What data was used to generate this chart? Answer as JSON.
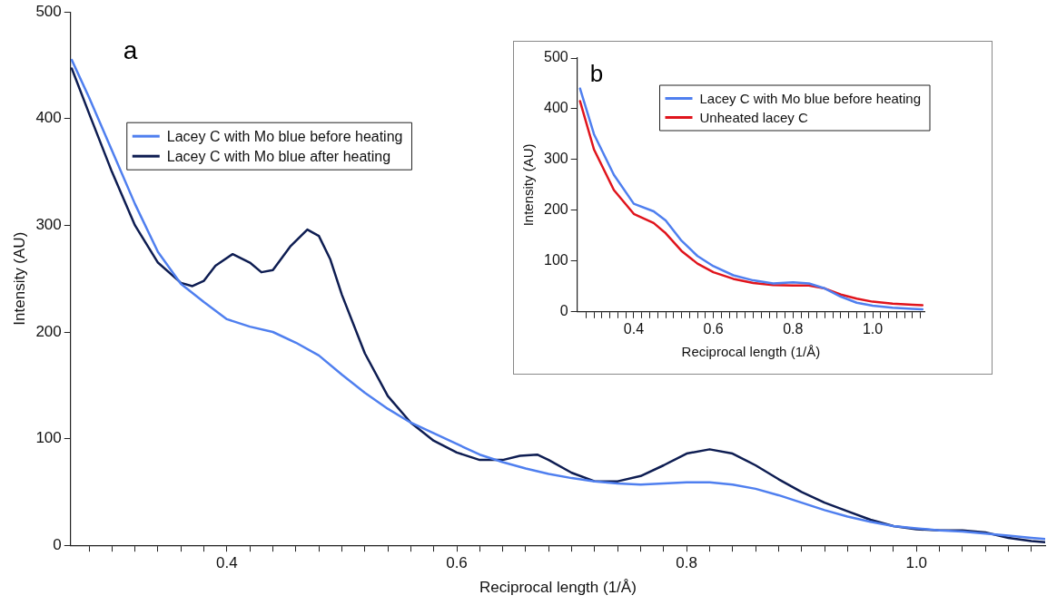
{
  "chart_data": [
    {
      "type": "line",
      "xlabel": "Reciprocal length (1/Å)",
      "ylabel": "Intensity (AU)",
      "annotations": [
        "a"
      ],
      "xlim": [
        0.264,
        1.112
      ],
      "ylim": [
        0,
        500
      ],
      "yticks": [
        0,
        100,
        200,
        300,
        400,
        500
      ],
      "xticks": [
        {
          "value": 0.28,
          "label": null
        },
        {
          "value": 0.3,
          "label": null
        },
        {
          "value": 0.32,
          "label": null
        },
        {
          "value": 0.34,
          "label": null
        },
        {
          "value": 0.36,
          "label": null
        },
        {
          "value": 0.38,
          "label": null
        },
        0.4,
        {
          "value": 0.42,
          "label": null
        },
        {
          "value": 0.44,
          "label": null
        },
        {
          "value": 0.46,
          "label": null
        },
        {
          "value": 0.48,
          "label": null
        },
        {
          "value": 0.5,
          "label": null
        },
        {
          "value": 0.52,
          "label": null
        },
        {
          "value": 0.54,
          "label": null
        },
        {
          "value": 0.56,
          "label": null
        },
        {
          "value": 0.58,
          "label": null
        },
        0.6,
        {
          "value": 0.62,
          "label": null
        },
        {
          "value": 0.64,
          "label": null
        },
        {
          "value": 0.66,
          "label": null
        },
        {
          "value": 0.68,
          "label": null
        },
        {
          "value": 0.7,
          "label": null
        },
        {
          "value": 0.72,
          "label": null
        },
        {
          "value": 0.74,
          "label": null
        },
        {
          "value": 0.76,
          "label": null
        },
        {
          "value": 0.78,
          "label": null
        },
        0.8,
        {
          "value": 0.82,
          "label": null
        },
        {
          "value": 0.84,
          "label": null
        },
        {
          "value": 0.86,
          "label": null
        },
        {
          "value": 0.88,
          "label": null
        },
        {
          "value": 0.9,
          "label": null
        },
        {
          "value": 0.92,
          "label": null
        },
        {
          "value": 0.94,
          "label": null
        },
        {
          "value": 0.96,
          "label": null
        },
        {
          "value": 0.98,
          "label": null
        },
        {
          "value": 1.0,
          "label": "1.0"
        },
        {
          "value": 1.02,
          "label": null
        },
        {
          "value": 1.04,
          "label": null
        },
        {
          "value": 1.06,
          "label": null
        },
        {
          "value": 1.08,
          "label": null
        },
        {
          "value": 1.1,
          "label": null
        }
      ],
      "grid": false,
      "legend": "top left",
      "marker": "none",
      "line_style": "solid",
      "series": [
        {
          "name": "Lacey C with Mo blue before heating",
          "color": "#4f7fef",
          "x": [
            0.265,
            0.28,
            0.3,
            0.32,
            0.34,
            0.36,
            0.38,
            0.4,
            0.42,
            0.44,
            0.46,
            0.48,
            0.5,
            0.52,
            0.54,
            0.56,
            0.58,
            0.6,
            0.62,
            0.64,
            0.66,
            0.68,
            0.7,
            0.72,
            0.74,
            0.76,
            0.78,
            0.8,
            0.82,
            0.84,
            0.86,
            0.88,
            0.9,
            0.92,
            0.94,
            0.96,
            0.98,
            1.0,
            1.02,
            1.04,
            1.06,
            1.08,
            1.1,
            1.112
          ],
          "values": [
            455,
            420,
            370,
            320,
            275,
            245,
            228,
            212,
            205,
            200,
            190,
            178,
            160,
            143,
            128,
            115,
            105,
            95,
            85,
            78,
            72,
            67,
            63,
            60,
            58,
            57,
            58,
            59,
            59,
            57,
            53,
            47,
            40,
            33,
            27,
            22,
            18,
            16,
            14,
            13,
            11,
            9,
            7,
            6
          ]
        },
        {
          "name": "Lacey C with Mo blue after heating",
          "color": "#0e1d52",
          "x": [
            0.265,
            0.28,
            0.3,
            0.32,
            0.34,
            0.36,
            0.37,
            0.38,
            0.39,
            0.405,
            0.42,
            0.43,
            0.44,
            0.455,
            0.47,
            0.48,
            0.49,
            0.5,
            0.52,
            0.54,
            0.56,
            0.58,
            0.6,
            0.62,
            0.64,
            0.655,
            0.67,
            0.68,
            0.7,
            0.72,
            0.74,
            0.76,
            0.78,
            0.8,
            0.82,
            0.84,
            0.86,
            0.88,
            0.9,
            0.92,
            0.94,
            0.96,
            0.98,
            1.0,
            1.02,
            1.04,
            1.06,
            1.08,
            1.1,
            1.112
          ],
          "values": [
            447,
            405,
            350,
            300,
            265,
            246,
            243,
            248,
            262,
            273,
            265,
            256,
            258,
            280,
            296,
            290,
            268,
            235,
            180,
            140,
            115,
            98,
            87,
            80,
            80,
            84,
            85,
            80,
            68,
            60,
            60,
            65,
            75,
            86,
            90,
            86,
            75,
            62,
            50,
            40,
            32,
            24,
            18,
            15,
            14,
            14,
            12,
            7,
            4,
            3
          ]
        }
      ]
    },
    {
      "type": "line",
      "xlabel": "Reciprocal length (1/Å)",
      "ylabel": "Intensity (AU)",
      "annotations": [
        "b"
      ],
      "xlim": [
        0.258,
        1.13
      ],
      "ylim": [
        0,
        500
      ],
      "yticks": [
        0,
        100,
        200,
        300,
        400,
        500
      ],
      "xticks": [
        {
          "value": 0.28,
          "label": null
        },
        {
          "value": 0.3,
          "label": null
        },
        {
          "value": 0.32,
          "label": null
        },
        {
          "value": 0.34,
          "label": null
        },
        {
          "value": 0.36,
          "label": null
        },
        {
          "value": 0.38,
          "label": null
        },
        0.4,
        {
          "value": 0.42,
          "label": null
        },
        {
          "value": 0.44,
          "label": null
        },
        {
          "value": 0.46,
          "label": null
        },
        {
          "value": 0.48,
          "label": null
        },
        {
          "value": 0.5,
          "label": null
        },
        {
          "value": 0.52,
          "label": null
        },
        {
          "value": 0.54,
          "label": null
        },
        {
          "value": 0.56,
          "label": null
        },
        {
          "value": 0.58,
          "label": null
        },
        0.6,
        {
          "value": 0.62,
          "label": null
        },
        {
          "value": 0.64,
          "label": null
        },
        {
          "value": 0.66,
          "label": null
        },
        {
          "value": 0.68,
          "label": null
        },
        {
          "value": 0.7,
          "label": null
        },
        {
          "value": 0.72,
          "label": null
        },
        {
          "value": 0.74,
          "label": null
        },
        {
          "value": 0.76,
          "label": null
        },
        {
          "value": 0.78,
          "label": null
        },
        0.8,
        {
          "value": 0.82,
          "label": null
        },
        {
          "value": 0.84,
          "label": null
        },
        {
          "value": 0.86,
          "label": null
        },
        {
          "value": 0.88,
          "label": null
        },
        {
          "value": 0.9,
          "label": null
        },
        {
          "value": 0.92,
          "label": null
        },
        {
          "value": 0.94,
          "label": null
        },
        {
          "value": 0.96,
          "label": null
        },
        {
          "value": 0.98,
          "label": null
        },
        {
          "value": 1.0,
          "label": "1.0"
        },
        {
          "value": 1.02,
          "label": null
        },
        {
          "value": 1.04,
          "label": null
        },
        {
          "value": 1.06,
          "label": null
        },
        {
          "value": 1.08,
          "label": null
        },
        {
          "value": 1.1,
          "label": null
        },
        {
          "value": 1.12,
          "label": null
        }
      ],
      "grid": false,
      "legend": "top right",
      "marker": "none",
      "line_style": "solid",
      "series": [
        {
          "name": "Lacey C with Mo blue before heating",
          "color": "#4f7fef",
          "x": [
            0.265,
            0.3,
            0.35,
            0.4,
            0.45,
            0.48,
            0.52,
            0.56,
            0.6,
            0.65,
            0.7,
            0.75,
            0.8,
            0.84,
            0.88,
            0.92,
            0.96,
            1.0,
            1.05,
            1.1,
            1.125
          ],
          "values": [
            440,
            350,
            270,
            213,
            198,
            180,
            140,
            110,
            90,
            72,
            62,
            56,
            58,
            56,
            46,
            30,
            18,
            12,
            8,
            6,
            5
          ]
        },
        {
          "name": "Unheated lacey C",
          "color": "#e0141c",
          "x": [
            0.265,
            0.3,
            0.35,
            0.4,
            0.45,
            0.48,
            0.52,
            0.56,
            0.6,
            0.65,
            0.7,
            0.75,
            0.8,
            0.84,
            0.88,
            0.92,
            0.96,
            1.0,
            1.05,
            1.1,
            1.125
          ],
          "values": [
            415,
            320,
            240,
            193,
            175,
            155,
            120,
            95,
            78,
            65,
            57,
            53,
            52,
            52,
            46,
            34,
            26,
            20,
            16,
            14,
            13
          ]
        }
      ]
    }
  ]
}
